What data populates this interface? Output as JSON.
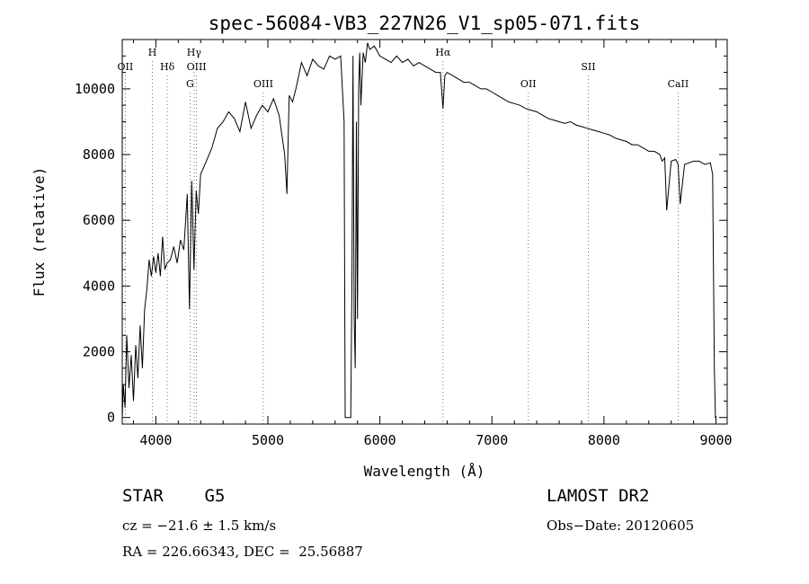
{
  "chart_data": {
    "type": "line",
    "title": "spec-56084-VB3_227N26_V1_sp05-071.fits",
    "xlabel": "Wavelength (Å)",
    "ylabel": "Flux (relative)",
    "xlim": [
      3700,
      9100
    ],
    "ylim": [
      -200,
      11500
    ],
    "x_ticks": [
      4000,
      5000,
      6000,
      7000,
      8000,
      9000
    ],
    "x_tick_labels": [
      "4000",
      "5000",
      "6000",
      "7000",
      "8000",
      "9000"
    ],
    "y_ticks": [
      0,
      2000,
      4000,
      6000,
      8000,
      10000
    ],
    "y_tick_labels": [
      "0",
      "2000",
      "4000",
      "6000",
      "8000",
      "10000"
    ],
    "grid": false,
    "line_markers": [
      {
        "label": "OII",
        "x": 3727,
        "level": 1
      },
      {
        "label": "H",
        "x": 3969,
        "level": 0
      },
      {
        "label": "Hδ",
        "x": 4102,
        "level": 1
      },
      {
        "label": "Hγ",
        "x": 4341,
        "level": 0
      },
      {
        "label": "G",
        "x": 4305,
        "level": 2
      },
      {
        "label": "OIII",
        "x": 4363,
        "level": 1
      },
      {
        "label": "OIII",
        "x": 4959,
        "level": 2
      },
      {
        "label": "Hα",
        "x": 6563,
        "level": 0
      },
      {
        "label": "OII",
        "x": 7325,
        "level": 2
      },
      {
        "label": "SII",
        "x": 7860,
        "level": 1
      },
      {
        "label": "CaII",
        "x": 8662,
        "level": 2
      }
    ],
    "series": [
      {
        "x": [
          3700,
          3710,
          3725,
          3740,
          3760,
          3780,
          3800,
          3820,
          3840,
          3860,
          3880,
          3900,
          3920,
          3940,
          3960,
          3980,
          4000,
          4020,
          4040,
          4060,
          4080,
          4100,
          4130,
          4160,
          4190,
          4220,
          4250,
          4280,
          4300,
          4320,
          4340,
          4360,
          4380,
          4400,
          4450,
          4500,
          4550,
          4600,
          4650,
          4700,
          4750,
          4800,
          4850,
          4900,
          4950,
          5000,
          5050,
          5100,
          5150,
          5170,
          5190,
          5220,
          5250,
          5300,
          5350,
          5400,
          5450,
          5500,
          5550,
          5600,
          5650,
          5680,
          5690,
          5710,
          5740,
          5750,
          5760,
          5770,
          5780,
          5790,
          5800,
          5810,
          5820,
          5830,
          5850,
          5870,
          5890,
          5910,
          5950,
          6000,
          6050,
          6100,
          6150,
          6200,
          6250,
          6300,
          6350,
          6400,
          6450,
          6500,
          6540,
          6563,
          6580,
          6600,
          6650,
          6700,
          6750,
          6800,
          6850,
          6900,
          6950,
          7000,
          7050,
          7100,
          7150,
          7200,
          7250,
          7300,
          7350,
          7400,
          7450,
          7500,
          7550,
          7600,
          7650,
          7700,
          7750,
          7800,
          7850,
          7900,
          7950,
          8000,
          8050,
          8100,
          8150,
          8200,
          8250,
          8300,
          8350,
          8400,
          8450,
          8498,
          8520,
          8542,
          8560,
          8600,
          8640,
          8662,
          8680,
          8720,
          8760,
          8800,
          8850,
          8900,
          8950,
          8970,
          8985,
          8995,
          9000
        ],
        "y": [
          0,
          1000,
          300,
          2500,
          900,
          1900,
          500,
          2200,
          1200,
          2800,
          1500,
          3300,
          3900,
          4800,
          4300,
          4900,
          4400,
          5000,
          4300,
          5500,
          4500,
          4700,
          4800,
          5200,
          4700,
          5400,
          5100,
          6800,
          3300,
          7200,
          4500,
          6900,
          6200,
          7400,
          7800,
          8200,
          8800,
          9000,
          9300,
          9100,
          8700,
          9600,
          8800,
          9200,
          9500,
          9300,
          9700,
          9200,
          8000,
          6800,
          9800,
          9600,
          10000,
          10800,
          10400,
          10900,
          10700,
          10600,
          11000,
          10900,
          11000,
          9000,
          0,
          0,
          0,
          4000,
          11000,
          3000,
          1500,
          9000,
          3000,
          10000,
          11100,
          9500,
          11100,
          10800,
          11400,
          11200,
          11300,
          11000,
          10900,
          10800,
          11000,
          10800,
          10900,
          10700,
          10800,
          10700,
          10600,
          10500,
          10500,
          9400,
          10400,
          10500,
          10400,
          10300,
          10200,
          10200,
          10100,
          10000,
          10000,
          9900,
          9800,
          9700,
          9600,
          9550,
          9500,
          9400,
          9350,
          9300,
          9200,
          9100,
          9050,
          9000,
          8950,
          9000,
          8900,
          8850,
          8800,
          8750,
          8700,
          8650,
          8600,
          8500,
          8450,
          8400,
          8300,
          8300,
          8200,
          8100,
          8100,
          8000,
          7800,
          7900,
          6300,
          7800,
          7850,
          7700,
          6500,
          7700,
          7750,
          7800,
          7800,
          7700,
          7750,
          7400,
          1500,
          0,
          0
        ]
      }
    ]
  },
  "info": {
    "object_type": "STAR    G5",
    "survey": "LAMOST DR2",
    "cz": "cz = −21.6 ± 1.5 km/s",
    "obs_date": "Obs−Date: 20120605",
    "radec": "RA = 226.66343, DEC =  25.56887"
  }
}
